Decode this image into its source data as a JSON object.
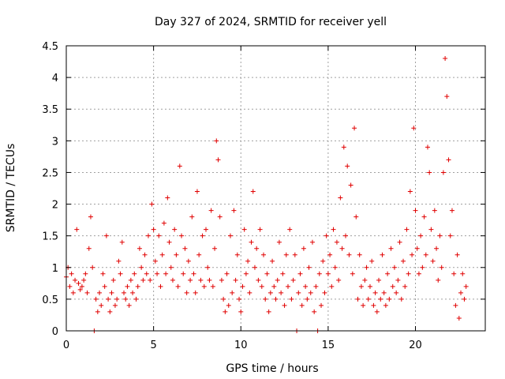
{
  "chart_data": {
    "type": "scatter",
    "title": "Day 327 of 2024, SRMTID for receiver yell",
    "xlabel": "GPS time / hours",
    "ylabel": "SRMTID / TECUs",
    "xlim": [
      0,
      24
    ],
    "ylim": [
      0,
      4.5
    ],
    "x_ticks": [
      0,
      5,
      10,
      15,
      20
    ],
    "x_tick_labels": [
      "0",
      "5",
      "10",
      "15",
      "20"
    ],
    "y_ticks": [
      0,
      0.5,
      1,
      1.5,
      2,
      2.5,
      3,
      3.5,
      4,
      4.5
    ],
    "y_tick_labels": [
      "0",
      "0.5",
      "1",
      "1.5",
      "2",
      "2.5",
      "3",
      "3.5",
      "4",
      "4.5"
    ],
    "grid": true,
    "marker": "+",
    "series": [
      {
        "name": "SRMTID",
        "color": "#e00000",
        "points": [
          [
            0.0,
            0.85
          ],
          [
            0.1,
            1.0
          ],
          [
            0.2,
            0.7
          ],
          [
            0.3,
            0.9
          ],
          [
            0.4,
            0.6
          ],
          [
            0.5,
            0.8
          ],
          [
            0.6,
            1.6
          ],
          [
            0.7,
            0.75
          ],
          [
            0.8,
            0.65
          ],
          [
            0.9,
            0.7
          ],
          [
            1.0,
            0.8
          ],
          [
            1.1,
            0.9
          ],
          [
            1.2,
            0.6
          ],
          [
            1.3,
            1.3
          ],
          [
            1.4,
            1.8
          ],
          [
            1.5,
            1.0
          ],
          [
            1.6,
            0.0
          ],
          [
            1.7,
            0.5
          ],
          [
            1.8,
            0.3
          ],
          [
            1.9,
            0.6
          ],
          [
            2.0,
            0.4
          ],
          [
            2.1,
            0.9
          ],
          [
            2.2,
            0.7
          ],
          [
            2.3,
            1.5
          ],
          [
            2.4,
            0.5
          ],
          [
            2.5,
            0.3
          ],
          [
            2.6,
            0.6
          ],
          [
            2.7,
            0.8
          ],
          [
            2.8,
            0.4
          ],
          [
            2.9,
            0.5
          ],
          [
            3.0,
            1.1
          ],
          [
            3.1,
            0.9
          ],
          [
            3.2,
            1.4
          ],
          [
            3.3,
            0.6
          ],
          [
            3.4,
            0.5
          ],
          [
            3.5,
            0.7
          ],
          [
            3.6,
            0.4
          ],
          [
            3.7,
            0.8
          ],
          [
            3.8,
            0.6
          ],
          [
            3.9,
            0.9
          ],
          [
            4.0,
            0.5
          ],
          [
            4.1,
            0.7
          ],
          [
            4.2,
            1.3
          ],
          [
            4.3,
            1.0
          ],
          [
            4.4,
            0.8
          ],
          [
            4.5,
            1.2
          ],
          [
            4.6,
            0.9
          ],
          [
            4.7,
            1.5
          ],
          [
            4.8,
            0.8
          ],
          [
            4.9,
            2.0
          ],
          [
            5.0,
            1.6
          ],
          [
            5.1,
            1.1
          ],
          [
            5.2,
            0.9
          ],
          [
            5.3,
            1.5
          ],
          [
            5.4,
            0.7
          ],
          [
            5.5,
            1.2
          ],
          [
            5.6,
            1.7
          ],
          [
            5.7,
            0.9
          ],
          [
            5.8,
            2.1
          ],
          [
            5.9,
            1.4
          ],
          [
            6.0,
            1.0
          ],
          [
            6.1,
            0.8
          ],
          [
            6.2,
            1.6
          ],
          [
            6.3,
            1.2
          ],
          [
            6.4,
            0.7
          ],
          [
            6.5,
            2.6
          ],
          [
            6.6,
            1.5
          ],
          [
            6.7,
            0.9
          ],
          [
            6.8,
            1.3
          ],
          [
            6.9,
            0.6
          ],
          [
            7.0,
            1.1
          ],
          [
            7.1,
            0.8
          ],
          [
            7.2,
            1.8
          ],
          [
            7.3,
            0.9
          ],
          [
            7.4,
            0.6
          ],
          [
            7.5,
            2.2
          ],
          [
            7.6,
            1.2
          ],
          [
            7.7,
            0.8
          ],
          [
            7.8,
            1.5
          ],
          [
            7.9,
            0.7
          ],
          [
            8.0,
            1.6
          ],
          [
            8.1,
            1.0
          ],
          [
            8.2,
            0.8
          ],
          [
            8.3,
            1.9
          ],
          [
            8.4,
            0.7
          ],
          [
            8.5,
            1.3
          ],
          [
            8.6,
            3.0
          ],
          [
            8.7,
            2.7
          ],
          [
            8.8,
            1.8
          ],
          [
            8.9,
            0.8
          ],
          [
            9.0,
            0.5
          ],
          [
            9.1,
            0.3
          ],
          [
            9.2,
            0.9
          ],
          [
            9.3,
            0.4
          ],
          [
            9.4,
            1.5
          ],
          [
            9.5,
            0.6
          ],
          [
            9.6,
            1.9
          ],
          [
            9.7,
            0.8
          ],
          [
            9.8,
            1.2
          ],
          [
            9.9,
            0.5
          ],
          [
            10.0,
            0.3
          ],
          [
            10.1,
            0.7
          ],
          [
            10.2,
            1.6
          ],
          [
            10.3,
            0.9
          ],
          [
            10.4,
            1.1
          ],
          [
            10.5,
            0.6
          ],
          [
            10.6,
            1.4
          ],
          [
            10.7,
            2.2
          ],
          [
            10.8,
            1.0
          ],
          [
            10.9,
            1.3
          ],
          [
            11.0,
            0.8
          ],
          [
            11.1,
            1.6
          ],
          [
            11.2,
            0.7
          ],
          [
            11.3,
            1.2
          ],
          [
            11.4,
            0.5
          ],
          [
            11.5,
            0.9
          ],
          [
            11.6,
            0.3
          ],
          [
            11.7,
            0.6
          ],
          [
            11.8,
            1.1
          ],
          [
            11.9,
            0.7
          ],
          [
            12.0,
            0.5
          ],
          [
            12.1,
            0.8
          ],
          [
            12.2,
            1.4
          ],
          [
            12.3,
            0.6
          ],
          [
            12.4,
            0.9
          ],
          [
            12.5,
            0.4
          ],
          [
            12.6,
            1.2
          ],
          [
            12.7,
            0.7
          ],
          [
            12.8,
            1.6
          ],
          [
            12.9,
            0.5
          ],
          [
            13.0,
            0.8
          ],
          [
            13.1,
            1.2
          ],
          [
            13.2,
            0.0
          ],
          [
            13.3,
            0.6
          ],
          [
            13.4,
            0.9
          ],
          [
            13.5,
            0.4
          ],
          [
            13.6,
            1.3
          ],
          [
            13.7,
            0.7
          ],
          [
            13.8,
            0.5
          ],
          [
            13.9,
            1.0
          ],
          [
            14.0,
            0.6
          ],
          [
            14.1,
            1.4
          ],
          [
            14.2,
            0.3
          ],
          [
            14.3,
            0.7
          ],
          [
            14.4,
            0.0
          ],
          [
            14.5,
            0.9
          ],
          [
            14.6,
            0.4
          ],
          [
            14.7,
            1.1
          ],
          [
            14.8,
            0.6
          ],
          [
            14.9,
            1.5
          ],
          [
            15.0,
            0.9
          ],
          [
            15.1,
            1.2
          ],
          [
            15.2,
            0.7
          ],
          [
            15.3,
            1.6
          ],
          [
            15.4,
            1.0
          ],
          [
            15.5,
            1.4
          ],
          [
            15.6,
            0.8
          ],
          [
            15.7,
            2.1
          ],
          [
            15.8,
            1.3
          ],
          [
            15.9,
            2.9
          ],
          [
            16.0,
            1.5
          ],
          [
            16.1,
            2.6
          ],
          [
            16.2,
            1.2
          ],
          [
            16.3,
            2.3
          ],
          [
            16.4,
            0.9
          ],
          [
            16.5,
            3.2
          ],
          [
            16.6,
            1.8
          ],
          [
            16.7,
            0.5
          ],
          [
            16.8,
            1.2
          ],
          [
            16.9,
            0.7
          ],
          [
            17.0,
            0.4
          ],
          [
            17.1,
            0.8
          ],
          [
            17.2,
            1.0
          ],
          [
            17.3,
            0.5
          ],
          [
            17.4,
            0.7
          ],
          [
            17.5,
            1.1
          ],
          [
            17.6,
            0.4
          ],
          [
            17.7,
            0.6
          ],
          [
            17.8,
            0.3
          ],
          [
            17.9,
            0.8
          ],
          [
            18.0,
            0.5
          ],
          [
            18.1,
            1.2
          ],
          [
            18.2,
            0.6
          ],
          [
            18.3,
            0.4
          ],
          [
            18.4,
            0.9
          ],
          [
            18.5,
            0.5
          ],
          [
            18.6,
            1.3
          ],
          [
            18.7,
            0.7
          ],
          [
            18.8,
            1.0
          ],
          [
            18.9,
            0.6
          ],
          [
            19.0,
            0.8
          ],
          [
            19.1,
            1.4
          ],
          [
            19.2,
            0.5
          ],
          [
            19.3,
            1.1
          ],
          [
            19.4,
            0.7
          ],
          [
            19.5,
            1.6
          ],
          [
            19.6,
            0.9
          ],
          [
            19.7,
            2.2
          ],
          [
            19.8,
            1.2
          ],
          [
            19.9,
            3.2
          ],
          [
            20.0,
            1.9
          ],
          [
            20.1,
            1.3
          ],
          [
            20.2,
            0.9
          ],
          [
            20.3,
            1.5
          ],
          [
            20.4,
            1.0
          ],
          [
            20.5,
            1.8
          ],
          [
            20.6,
            1.2
          ],
          [
            20.7,
            2.9
          ],
          [
            20.8,
            2.5
          ],
          [
            20.9,
            1.6
          ],
          [
            21.0,
            1.1
          ],
          [
            21.1,
            1.9
          ],
          [
            21.2,
            1.3
          ],
          [
            21.3,
            0.8
          ],
          [
            21.4,
            1.5
          ],
          [
            21.5,
            1.0
          ],
          [
            21.6,
            2.5
          ],
          [
            21.7,
            4.3
          ],
          [
            21.8,
            3.7
          ],
          [
            21.9,
            2.7
          ],
          [
            22.0,
            1.5
          ],
          [
            22.1,
            1.9
          ],
          [
            22.2,
            0.9
          ],
          [
            22.3,
            0.4
          ],
          [
            22.4,
            1.2
          ],
          [
            22.5,
            0.2
          ],
          [
            22.6,
            0.6
          ],
          [
            22.7,
            0.9
          ],
          [
            22.8,
            0.5
          ],
          [
            22.9,
            0.7
          ]
        ]
      }
    ]
  }
}
